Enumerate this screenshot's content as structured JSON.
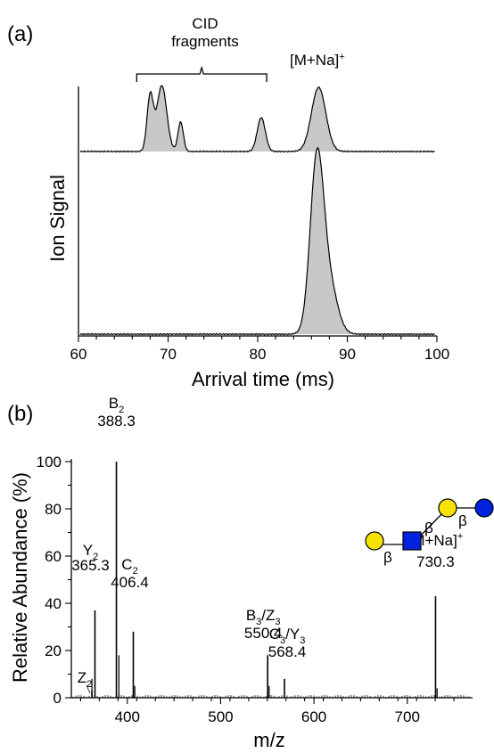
{
  "chart_data": [
    {
      "panel": "(a)",
      "type": "line",
      "xlabel": "Arrival time (ms)",
      "ylabel": "Ion Signal",
      "xlim": [
        60,
        100
      ],
      "xticks": [
        60,
        70,
        80,
        90,
        100
      ],
      "fill_color": "#c8c8c8",
      "series": [
        {
          "trace": "upper",
          "peaks": [
            {
              "x": 68.0,
              "height": 0.62,
              "width": 0.35
            },
            {
              "x": 69.3,
              "height": 0.74,
              "width": 0.55
            },
            {
              "x": 71.4,
              "height": 0.33,
              "width": 0.3
            },
            {
              "x": 80.4,
              "height": 0.38,
              "width": 0.45
            },
            {
              "x": 86.8,
              "height": 0.72,
              "width": 0.8
            }
          ]
        },
        {
          "trace": "lower",
          "peaks": [
            {
              "x": 86.6,
              "height": 1.0,
              "width": 0.75
            },
            {
              "x": 88.0,
              "height": 0.28,
              "width": 0.9
            }
          ]
        }
      ],
      "annotations": [
        {
          "text": "CID",
          "text2": "fragments",
          "bracket": [
            66.5,
            81.0
          ]
        },
        {
          "text": "[M+Na]",
          "sup": "+"
        }
      ]
    },
    {
      "panel": "(b)",
      "type": "bar",
      "xlabel": "m/z",
      "ylabel": "Relative Abundance (%)",
      "xlim": [
        340,
        770
      ],
      "xticks": [
        400,
        500,
        600,
        700
      ],
      "ylim": [
        0,
        100
      ],
      "yticks": [
        0,
        20,
        40,
        60,
        80,
        100
      ],
      "peaks": [
        {
          "x": 365.3,
          "y": 37,
          "label": "Y",
          "sub": "2",
          "value": "365.3"
        },
        {
          "x": 388.3,
          "y": 100,
          "label": "B",
          "sub": "2",
          "value": "388.3"
        },
        {
          "x": 406.4,
          "y": 28,
          "label": "C",
          "sub": "2",
          "value": "406.4"
        },
        {
          "x": 550.4,
          "y": 18,
          "label": "B",
          "sub": "3",
          "label2": "/Z",
          "sub2": "3",
          "value": "550.4"
        },
        {
          "x": 568.4,
          "y": 8,
          "label": "C",
          "sub": "3",
          "label2": "/Y",
          "sub2": "3",
          "value": "568.4"
        },
        {
          "x": 730.3,
          "y": 43,
          "label": "[M+Na]",
          "sup": "+",
          "value": "730.3"
        },
        {
          "x": 362.0,
          "y": 3,
          "label": "Z",
          "sub": "2"
        }
      ],
      "glycan": {
        "beta": "β",
        "colors": {
          "yellow": "#f5e400",
          "blue": "#0022dd"
        }
      }
    }
  ]
}
